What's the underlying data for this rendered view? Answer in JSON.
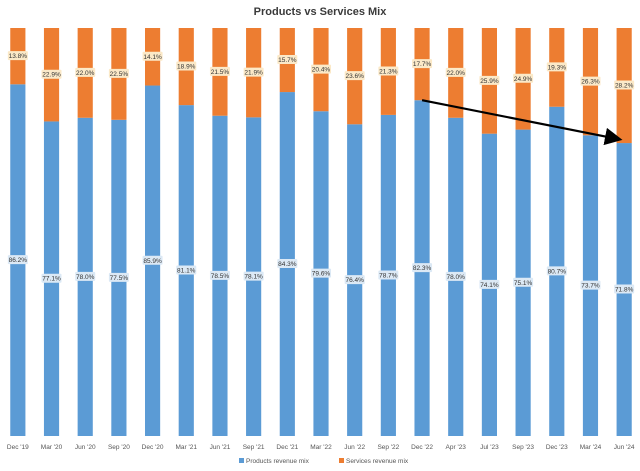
{
  "chart_data": {
    "type": "bar",
    "stacked": true,
    "title": "Products vs Services Mix",
    "categories": [
      "Dec '19",
      "Mar '20",
      "Jun '20",
      "Sep '20",
      "Dec '20",
      "Mar '21",
      "Jun '21",
      "Sep '21",
      "Dec '21",
      "Mar '22",
      "Jun '22",
      "Sep '22",
      "Dec '22",
      "Apr '23",
      "Jul '23",
      "Sep '23",
      "Dec '23",
      "Mar '24",
      "Jun '24"
    ],
    "series": [
      {
        "name": "Products revenue mix",
        "color": "#5b9bd5",
        "values": [
          86.2,
          77.1,
          78.0,
          77.5,
          85.9,
          81.1,
          78.5,
          78.1,
          84.3,
          79.6,
          76.4,
          78.7,
          82.3,
          78.0,
          74.1,
          75.1,
          80.7,
          73.7,
          71.8
        ],
        "labels": [
          "86.2%",
          "77.1%",
          "78.0%",
          "77.5%",
          "85.9%",
          "81.1%",
          "78.5%",
          "78.1%",
          "84.3%",
          "79.6%",
          "76.4%",
          "78.7%",
          "82.3%",
          "78.0%",
          "74.1%",
          "75.1%",
          "80.7%",
          "73.7%",
          "71.8%"
        ]
      },
      {
        "name": "Services revenue mix",
        "color": "#ed7d31",
        "values": [
          13.8,
          22.9,
          22.0,
          22.5,
          14.1,
          18.9,
          21.5,
          21.9,
          15.7,
          20.4,
          23.6,
          21.3,
          17.7,
          22.0,
          25.9,
          24.9,
          19.3,
          26.3,
          28.2
        ],
        "labels": [
          "13.8%",
          "22.9%",
          "22.0%",
          "22.5%",
          "14.1%",
          "18.9%",
          "21.5%",
          "21.9%",
          "15.7%",
          "20.4%",
          "23.6%",
          "21.3%",
          "17.7%",
          "22.0%",
          "25.9%",
          "24.9%",
          "19.3%",
          "26.3%",
          "28.2%"
        ]
      }
    ],
    "ylim": [
      0,
      100
    ],
    "grid": false,
    "legend_position": "bottom",
    "annotations": [
      {
        "type": "arrow",
        "color": "#000000",
        "from": {
          "category": "Dec '22",
          "y": 82.3
        },
        "to": {
          "category": "Jun '24",
          "y": 71.8
        }
      }
    ]
  }
}
